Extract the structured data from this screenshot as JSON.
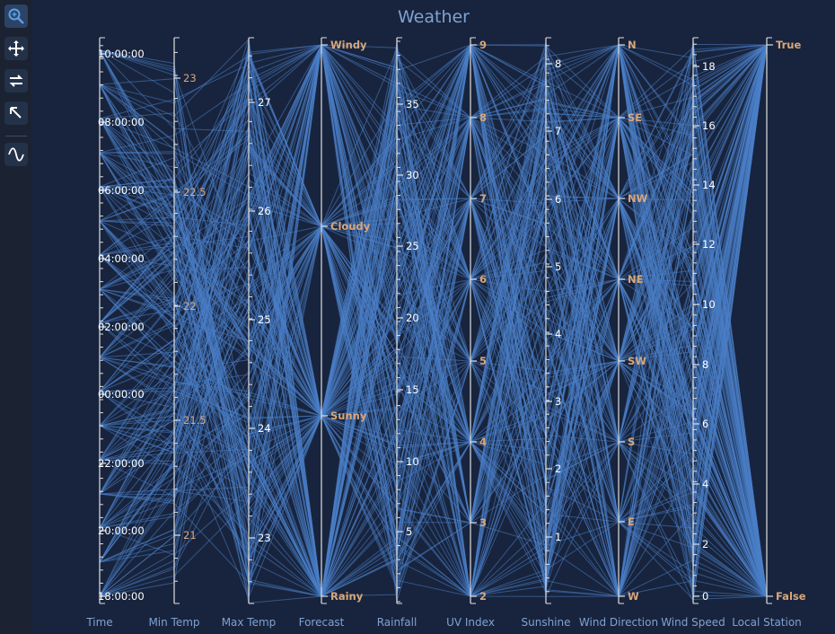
{
  "toolbar": {
    "tools": [
      {
        "name": "zoom-icon",
        "active": true
      },
      {
        "name": "pan-icon",
        "active": false
      },
      {
        "name": "swap-axes-icon",
        "active": false
      },
      {
        "name": "reset-icon",
        "active": false
      },
      {
        "name": "curve-icon",
        "active": false
      }
    ]
  },
  "colors": {
    "background": "#18243d",
    "line": "#4a7fc8",
    "axis": "#e0e0e0",
    "label_light": "#ffffff",
    "label_categorical": "#d9a77a",
    "axis_name": "#7fa2d0",
    "title": "#7fa2d0"
  },
  "chart_data": {
    "type": "parallel-coordinates",
    "title": "Weather",
    "axes": [
      {
        "name": "Time",
        "kind": "time",
        "range": [
          "18:00:00",
          "10:00:00"
        ],
        "tick_labels": [
          "18:00:00",
          "20:00:00",
          "22:00:00",
          "00:00:00",
          "02:00:00",
          "04:00:00",
          "06:00:00",
          "08:00:00",
          "10:00:00"
        ]
      },
      {
        "name": "Min Temp",
        "kind": "numeric",
        "range": [
          20.7,
          23.2
        ],
        "tick_labels": [
          "21",
          "21.5",
          "22",
          "22.5",
          "23"
        ]
      },
      {
        "name": "Max Temp",
        "kind": "numeric",
        "range": [
          22.4,
          27.6
        ],
        "tick_labels": [
          "23",
          "24",
          "25",
          "26",
          "27"
        ]
      },
      {
        "name": "Forecast",
        "kind": "category",
        "tick_labels": [
          "Rainy",
          "Sunny",
          "Cloudy",
          "Windy"
        ]
      },
      {
        "name": "Rainfall",
        "kind": "numeric",
        "range": [
          0,
          39
        ],
        "tick_labels": [
          "5",
          "10",
          "15",
          "20",
          "25",
          "30",
          "35"
        ]
      },
      {
        "name": "UV Index",
        "kind": "category",
        "tick_labels": [
          "2",
          "3",
          "4",
          "5",
          "6",
          "7",
          "8",
          "9"
        ]
      },
      {
        "name": "Sunshine",
        "kind": "numeric",
        "range": [
          0,
          8.4
        ],
        "tick_labels": [
          "1",
          "2",
          "3",
          "4",
          "5",
          "6",
          "7",
          "8"
        ]
      },
      {
        "name": "Wind Direction",
        "kind": "category",
        "tick_labels": [
          "W",
          "E",
          "S",
          "SW",
          "NE",
          "NW",
          "SE",
          "N"
        ]
      },
      {
        "name": "Wind Speed",
        "kind": "numeric",
        "range": [
          0,
          19
        ],
        "tick_labels": [
          "0",
          "2",
          "4",
          "6",
          "8",
          "10",
          "12",
          "14",
          "16",
          "18"
        ]
      },
      {
        "name": "Local Station",
        "kind": "category",
        "tick_labels": [
          "False",
          "True"
        ]
      }
    ],
    "records": 240,
    "grid": false,
    "legend": "none"
  }
}
